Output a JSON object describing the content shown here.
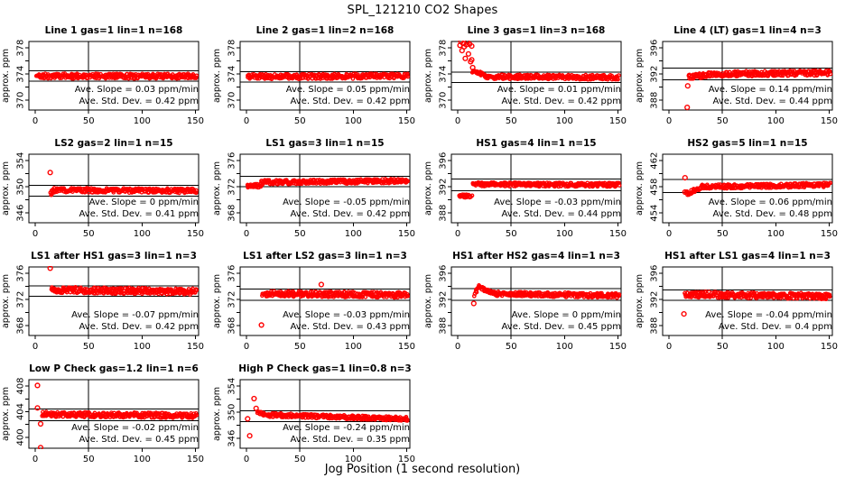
{
  "title": "SPL_121210  CO2 Shapes",
  "xlabel": "Jog Position (1 second resolution)",
  "chart_data": {
    "type": "scatter",
    "title": "SPL_121210  CO2 Shapes",
    "xlabel": "Jog Position (1 second resolution)",
    "point_color": "#ff0000",
    "line_color": "#000000",
    "xlim": [
      -6,
      153
    ],
    "xticks": [
      0,
      50,
      100,
      150
    ],
    "vline_x": 50,
    "labels": {
      "slope_prefix": "Ave. Slope = ",
      "slope_unit": "ppm/min",
      "std_prefix": "Ave. Std. Dev. = ",
      "std_unit": "ppm"
    },
    "panels": [
      {
        "id": "line-1",
        "title": "Line 1 gas=1 lin=1 n=168",
        "ylabel": "approx. ppm",
        "yticks": [
          370,
          374,
          378
        ],
        "ylim": [
          368.5,
          379
        ],
        "ref_lines": [
          372.9,
          374.5
        ],
        "vline_x": 50,
        "slope": 0.03,
        "std": 0.42,
        "mean_level": 373.7,
        "segments": [
          {
            "x0": 1,
            "x1": 151,
            "y0": 373.7,
            "y1": 373.7,
            "noise": 0.38,
            "n": 300
          }
        ],
        "outliers": []
      },
      {
        "id": "line-2",
        "title": "Line 2 gas=1 lin=2 n=168",
        "ylabel": "approx. ppm",
        "yticks": [
          370,
          374,
          378
        ],
        "ylim": [
          368.5,
          379
        ],
        "ref_lines": [
          372.8,
          374.4
        ],
        "vline_x": 50,
        "slope": 0.05,
        "std": 0.42,
        "mean_level": 373.6,
        "segments": [
          {
            "x0": 1,
            "x1": 151,
            "y0": 373.6,
            "y1": 373.7,
            "noise": 0.38,
            "n": 300
          }
        ],
        "outliers": []
      },
      {
        "id": "line-3",
        "title": "Line 3 gas=1 lin=3 n=168",
        "ylabel": "approx. ppm",
        "yticks": [
          370,
          374,
          378
        ],
        "ylim": [
          368.5,
          379
        ],
        "ref_lines": [
          372.7,
          374.3
        ],
        "vline_x": 50,
        "slope": 0.01,
        "std": 0.42,
        "mean_level": 373.5,
        "segments": [
          {
            "x0": 14,
            "x1": 26,
            "y0": 374.5,
            "y1": 373.8,
            "noise": 0.25,
            "n": 26
          },
          {
            "x0": 26,
            "x1": 151,
            "y0": 373.6,
            "y1": 373.5,
            "noise": 0.35,
            "n": 270
          }
        ],
        "outliers": [
          [
            2,
            378.4
          ],
          [
            3,
            379.0
          ],
          [
            4,
            377.6
          ],
          [
            5,
            378.7
          ],
          [
            6,
            378.2
          ],
          [
            7,
            376.4
          ],
          [
            8,
            378.5
          ],
          [
            9,
            378.9
          ],
          [
            10,
            377.1
          ],
          [
            11,
            378.6
          ],
          [
            12,
            375.9
          ],
          [
            13,
            378.3
          ],
          [
            13,
            376.2
          ],
          [
            14,
            375.0
          ]
        ]
      },
      {
        "id": "line-4-lt",
        "title": "Line 4 (LT) gas=1 lin=4 n=3",
        "ylabel": "approx. ppm",
        "yticks": [
          388,
          392,
          396
        ],
        "ylim": [
          386.5,
          397
        ],
        "ref_lines": [
          391.1,
          392.9
        ],
        "vline_x": 50,
        "slope": 0.14,
        "std": 0.44,
        "mean_level": 392.0,
        "segments": [
          {
            "x0": 18,
            "x1": 45,
            "y0": 391.6,
            "y1": 392.0,
            "noise": 0.4,
            "n": 55
          },
          {
            "x0": 45,
            "x1": 151,
            "y0": 392.0,
            "y1": 392.2,
            "noise": 0.4,
            "n": 215
          }
        ],
        "outliers": [
          [
            17,
            386.9
          ],
          [
            17.5,
            390.2
          ]
        ]
      },
      {
        "id": "ls2",
        "title": "LS2 gas=2 lin=1 n=15",
        "ylabel": "approx. ppm",
        "yticks": [
          346,
          350,
          354
        ],
        "ylim": [
          344.5,
          355
        ],
        "ref_lines": [
          348.6,
          350.2
        ],
        "vline_x": 50,
        "slope": 0,
        "std": 0.41,
        "mean_level": 349.4,
        "segments": [
          {
            "x0": 14,
            "x1": 18,
            "y0": 349.0,
            "y1": 349.5,
            "noise": 0.3,
            "n": 10
          },
          {
            "x0": 18,
            "x1": 151,
            "y0": 349.5,
            "y1": 349.4,
            "noise": 0.35,
            "n": 280
          }
        ],
        "outliers": [
          [
            14,
            352.2
          ]
        ]
      },
      {
        "id": "ls1",
        "title": "LS1 gas=3 lin=1 n=15",
        "ylabel": "approx. ppm",
        "yticks": [
          368,
          372,
          376
        ],
        "ylim": [
          366.5,
          377
        ],
        "ref_lines": [
          372.0,
          373.6
        ],
        "vline_x": 50,
        "slope": -0.05,
        "std": 0.42,
        "mean_level": 372.8,
        "segments": [
          {
            "x0": 1,
            "x1": 14,
            "y0": 372.1,
            "y1": 372.2,
            "noise": 0.3,
            "n": 30
          },
          {
            "x0": 14,
            "x1": 151,
            "y0": 372.7,
            "y1": 372.9,
            "noise": 0.33,
            "n": 285
          }
        ],
        "outliers": []
      },
      {
        "id": "hs1",
        "title": "HS1 gas=4 lin=1 n=15",
        "ylabel": "approx. ppm",
        "yticks": [
          388,
          392,
          396
        ],
        "ylim": [
          386.5,
          397
        ],
        "ref_lines": [
          391.4,
          393.2
        ],
        "vline_x": 50,
        "slope": -0.03,
        "std": 0.44,
        "mean_level": 392.3,
        "segments": [
          {
            "x0": 1,
            "x1": 13,
            "y0": 390.6,
            "y1": 390.6,
            "noise": 0.25,
            "n": 28
          },
          {
            "x0": 14,
            "x1": 151,
            "y0": 392.4,
            "y1": 392.3,
            "noise": 0.3,
            "n": 285
          }
        ],
        "outliers": []
      },
      {
        "id": "hs2",
        "title": "HS2 gas=5 lin=1 n=15",
        "ylabel": "approx. ppm",
        "yticks": [
          454,
          458,
          462
        ],
        "ylim": [
          452.5,
          463
        ],
        "ref_lines": [
          457.1,
          459.1
        ],
        "vline_x": 50,
        "slope": 0.06,
        "std": 0.48,
        "mean_level": 458.1,
        "segments": [
          {
            "x0": 16,
            "x1": 30,
            "y0": 456.9,
            "y1": 457.9,
            "noise": 0.3,
            "n": 32
          },
          {
            "x0": 30,
            "x1": 151,
            "y0": 458.0,
            "y1": 458.3,
            "noise": 0.33,
            "n": 255
          }
        ],
        "outliers": [
          [
            15,
            459.4
          ],
          [
            15,
            457.2
          ]
        ]
      },
      {
        "id": "ls1-after-hs1",
        "title": "LS1 after HS1 gas=3 lin=1 n=3",
        "ylabel": "approx. ppm",
        "yticks": [
          368,
          372,
          376
        ],
        "ylim": [
          366.5,
          377
        ],
        "ref_lines": [
          372.5,
          374.1
        ],
        "vline_x": 50,
        "slope": -0.07,
        "std": 0.42,
        "mean_level": 373.3,
        "segments": [
          {
            "x0": 15,
            "x1": 151,
            "y0": 373.5,
            "y1": 373.2,
            "noise": 0.48,
            "n": 300
          }
        ],
        "outliers": [
          [
            14,
            376.8
          ]
        ]
      },
      {
        "id": "ls1-after-ls2",
        "title": "LS1 after LS2 gas=3 lin=1 n=3",
        "ylabel": "approx. ppm",
        "yticks": [
          368,
          372,
          376
        ],
        "ylim": [
          366.5,
          377
        ],
        "ref_lines": [
          371.9,
          373.6
        ],
        "vline_x": 50,
        "slope": -0.03,
        "std": 0.43,
        "mean_level": 372.8,
        "segments": [
          {
            "x0": 15,
            "x1": 151,
            "y0": 372.9,
            "y1": 372.7,
            "noise": 0.42,
            "n": 300
          }
        ],
        "outliers": [
          [
            14,
            368.1
          ],
          [
            70,
            374.3
          ]
        ]
      },
      {
        "id": "hs1-after-hs2",
        "title": "HS1 after HS2 gas=4 lin=1 n=3",
        "ylabel": "approx. ppm",
        "yticks": [
          388,
          392,
          396
        ],
        "ylim": [
          386.5,
          397
        ],
        "ref_lines": [
          391.9,
          393.7
        ],
        "vline_x": 50,
        "slope": 0,
        "std": 0.45,
        "mean_level": 392.8,
        "segments": [
          {
            "x0": 16,
            "x1": 19,
            "y0": 392.6,
            "y1": 394.0,
            "noise": 0.25,
            "n": 8
          },
          {
            "x0": 19,
            "x1": 35,
            "y0": 394.0,
            "y1": 392.9,
            "noise": 0.3,
            "n": 34
          },
          {
            "x0": 35,
            "x1": 151,
            "y0": 392.9,
            "y1": 392.6,
            "noise": 0.35,
            "n": 240
          }
        ],
        "outliers": [
          [
            15,
            391.4
          ]
        ]
      },
      {
        "id": "hs1-after-ls1",
        "title": "HS1 after LS1 gas=4 lin=1 n=3",
        "ylabel": "approx. ppm",
        "yticks": [
          388,
          392,
          396
        ],
        "ylim": [
          386.5,
          397
        ],
        "ref_lines": [
          391.9,
          393.5
        ],
        "vline_x": 50,
        "slope": -0.04,
        "std": 0.4,
        "mean_level": 392.7,
        "segments": [
          {
            "x0": 15,
            "x1": 151,
            "y0": 392.8,
            "y1": 392.5,
            "noise": 0.45,
            "n": 300
          }
        ],
        "outliers": [
          [
            14,
            389.8
          ]
        ]
      },
      {
        "id": "low-p-check",
        "title": "Low P Check gas=1.2 lin=1 n=6",
        "ylabel": "approx. ppm",
        "yticks": [
          400,
          404,
          408
        ],
        "ylim": [
          398.3,
          409
        ],
        "ref_lines": [
          402.6,
          404.4
        ],
        "vline_x": 50,
        "slope": -0.02,
        "std": 0.45,
        "mean_level": 403.5,
        "segments": [
          {
            "x0": 6,
            "x1": 151,
            "y0": 403.6,
            "y1": 403.4,
            "noise": 0.4,
            "n": 300
          }
        ],
        "outliers": [
          [
            2,
            408.1
          ],
          [
            2,
            404.6
          ],
          [
            5,
            402.1
          ],
          [
            5,
            398.4
          ]
        ]
      },
      {
        "id": "high-p-check",
        "title": "High P Check gas=1 lin=0.8 n=3",
        "ylabel": "approx. ppm",
        "yticks": [
          346,
          350,
          354
        ],
        "ylim": [
          344.5,
          355
        ],
        "ref_lines": [
          348.6,
          350.2
        ],
        "vline_x": 50,
        "slope": -0.24,
        "std": 0.35,
        "mean_level": 349.4,
        "segments": [
          {
            "x0": 10,
            "x1": 20,
            "y0": 350.0,
            "y1": 349.6,
            "noise": 0.25,
            "n": 20
          },
          {
            "x0": 20,
            "x1": 151,
            "y0": 349.6,
            "y1": 349.0,
            "noise": 0.3,
            "n": 280
          }
        ],
        "outliers": [
          [
            1,
            349.0
          ],
          [
            3,
            346.4
          ],
          [
            7,
            352.1
          ],
          [
            9,
            350.6
          ]
        ]
      }
    ]
  }
}
